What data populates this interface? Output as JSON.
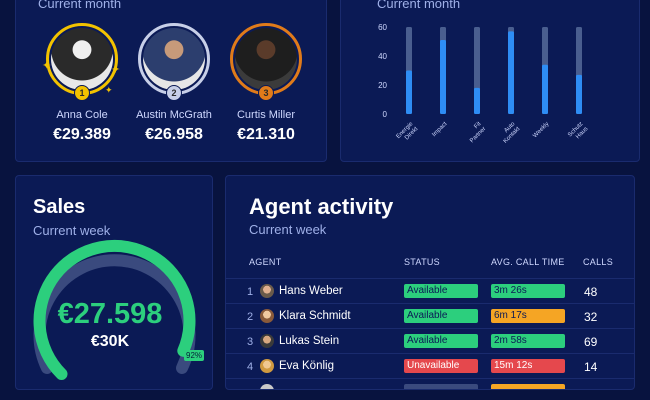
{
  "leaderboard": {
    "subtitle": "Current month",
    "agents": [
      {
        "rank": "1",
        "name": "Anna Cole",
        "amount": "€29.389",
        "ring_color": "#f2c200"
      },
      {
        "rank": "2",
        "name": "Austin McGrath",
        "amount": "€26.958",
        "ring_color": "#c7cfe8"
      },
      {
        "rank": "3",
        "name": "Curtis Miller",
        "amount": "€21.310",
        "ring_color": "#e07b1a"
      }
    ]
  },
  "call_chart": {
    "subtitle": "Current month"
  },
  "chart_data": {
    "type": "bar",
    "categories": [
      "Energie Direkt",
      "Impact",
      "Fit Partner",
      "Auto Kontakt",
      "Weekly",
      "Schutz Haus"
    ],
    "series": [
      {
        "values": [
          30,
          51,
          18,
          57,
          34,
          27
        ]
      },
      {
        "values": [
          60,
          60,
          60,
          60,
          60,
          60
        ]
      }
    ],
    "ylim": [
      0,
      60
    ],
    "yticks": [
      0,
      20,
      40,
      60
    ],
    "colors": [
      "#2e8df5",
      "#4a5e8f"
    ]
  },
  "sales": {
    "title": "Sales",
    "subtitle": "Current week",
    "value": "€27.598",
    "target": "€30K",
    "percent_label": "92%",
    "percent": 92
  },
  "activity": {
    "title": "Agent activity",
    "subtitle": "Current week",
    "columns": [
      "AGENT",
      "STATUS",
      "AVG. CALL TIME",
      "CALLS"
    ],
    "rows": [
      {
        "num": "1",
        "name": "Hans Weber",
        "status": "Available",
        "status_color": "#2ccf7d",
        "call_time": "3m 26s",
        "call_color": "#2ccf7d",
        "calls": "48"
      },
      {
        "num": "2",
        "name": "Klara Schmidt",
        "status": "Available",
        "status_color": "#2ccf7d",
        "call_time": "6m 17s",
        "call_color": "#f5a524",
        "calls": "32"
      },
      {
        "num": "3",
        "name": "Lukas Stein",
        "status": "Available",
        "status_color": "#2ccf7d",
        "call_time": "2m 58s",
        "call_color": "#2ccf7d",
        "calls": "69"
      },
      {
        "num": "4",
        "name": "Eva Könlig",
        "status": "Unavailable",
        "status_color": "#e5484d",
        "call_time": "15m 12s",
        "call_color": "#e5484d",
        "calls": "14"
      }
    ]
  }
}
